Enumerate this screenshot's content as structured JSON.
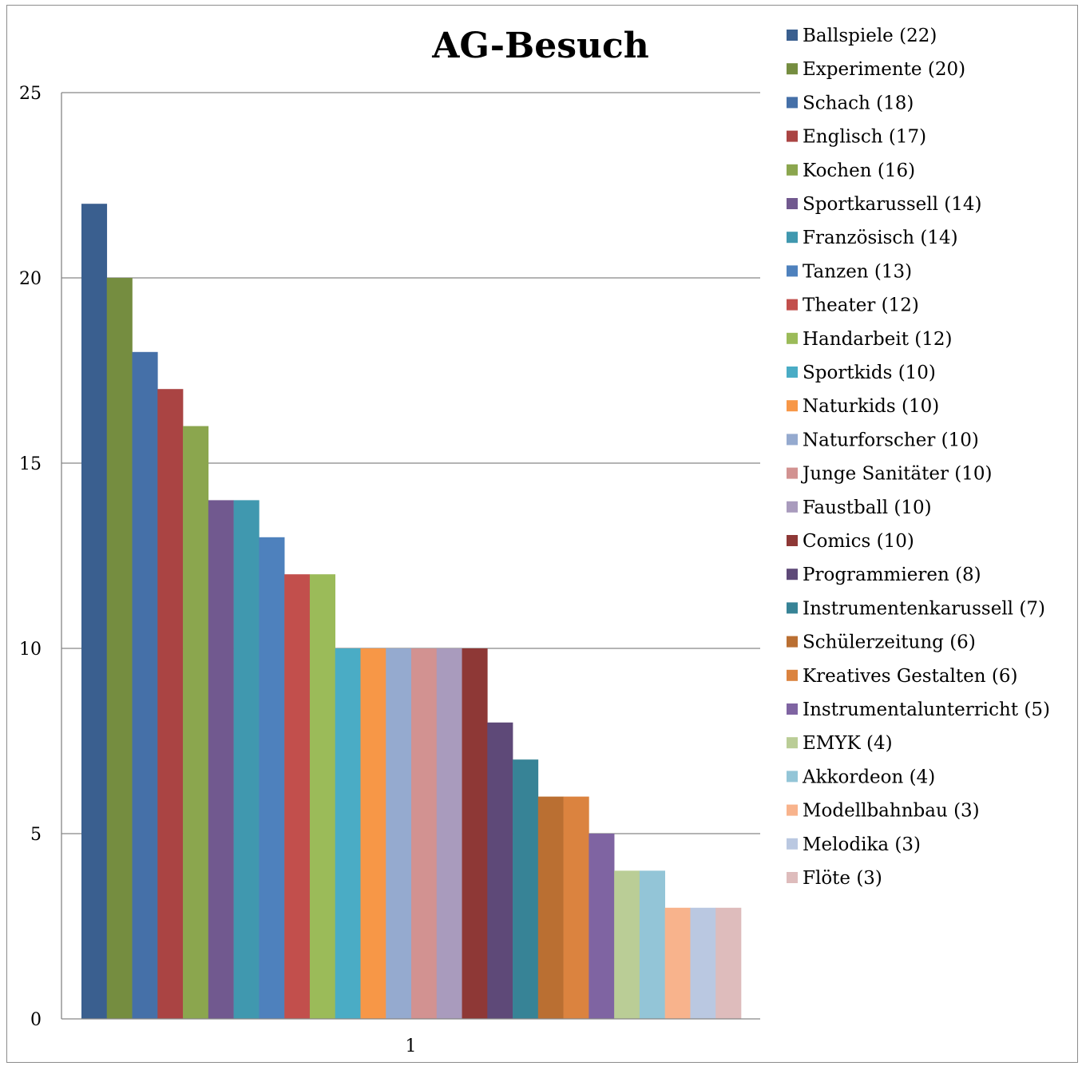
{
  "chart_data": {
    "type": "bar",
    "title": "AG-Besuch",
    "xlabel": "",
    "ylabel": "",
    "categories": [
      "1"
    ],
    "ylim": [
      0,
      25
    ],
    "yticks": [
      "0",
      "5",
      "10",
      "15",
      "20",
      "25"
    ],
    "grid": true,
    "legend_position": "right",
    "series": [
      {
        "name": "Ballspiele (22)",
        "value": 22,
        "color": "#3A5F8F"
      },
      {
        "name": "Experimente (20)",
        "value": 20,
        "color": "#758D40"
      },
      {
        "name": "Schach (18)",
        "value": 18,
        "color": "#4570A8"
      },
      {
        "name": "Englisch (17)",
        "value": 17,
        "color": "#AA4443"
      },
      {
        "name": "Kochen (16)",
        "value": 16,
        "color": "#8BA64E"
      },
      {
        "name": "Sportkarussell (14)",
        "value": 14,
        "color": "#71598F"
      },
      {
        "name": "Französisch (14)",
        "value": 14,
        "color": "#4098AF"
      },
      {
        "name": "Tanzen (13)",
        "value": 13,
        "color": "#4E81BD"
      },
      {
        "name": "Theater (12)",
        "value": 12,
        "color": "#C24F4C"
      },
      {
        "name": "Handarbeit (12)",
        "value": 12,
        "color": "#9BBB59"
      },
      {
        "name": "Sportkids (10)",
        "value": 10,
        "color": "#4AACC5"
      },
      {
        "name": "Naturkids (10)",
        "value": 10,
        "color": "#F79747"
      },
      {
        "name": "Naturforscher (10)",
        "value": 10,
        "color": "#95AACF"
      },
      {
        "name": "Junge Sanitäter (10)",
        "value": 10,
        "color": "#D29291"
      },
      {
        "name": "Faustball (10)",
        "value": 10,
        "color": "#A99BBD"
      },
      {
        "name": "Comics (10)",
        "value": 10,
        "color": "#8E3836"
      },
      {
        "name": "Programmieren (8)",
        "value": 8,
        "color": "#5E4978"
      },
      {
        "name": "Instrumentenkarussell (7)",
        "value": 7,
        "color": "#378396"
      },
      {
        "name": "Schülerzeitung (6)",
        "value": 6,
        "color": "#BA6F32"
      },
      {
        "name": "Kreatives Gestalten (6)",
        "value": 6,
        "color": "#DB833F"
      },
      {
        "name": "Instrumentalunterricht (5)",
        "value": 5,
        "color": "#7F64A2"
      },
      {
        "name": "EMYK (4)",
        "value": 4,
        "color": "#BACD96"
      },
      {
        "name": "Akkordeon (4)",
        "value": 4,
        "color": "#93C5D7"
      },
      {
        "name": "Modellbahnbau (3)",
        "value": 3,
        "color": "#F8B38C"
      },
      {
        "name": "Melodika (3)",
        "value": 3,
        "color": "#BAC8E1"
      },
      {
        "name": "Flöte (3)",
        "value": 3,
        "color": "#DEBCBC"
      }
    ]
  },
  "colors": {
    "gridline": "#868686",
    "axis": "#868686",
    "frame": "#8c8c8c"
  }
}
